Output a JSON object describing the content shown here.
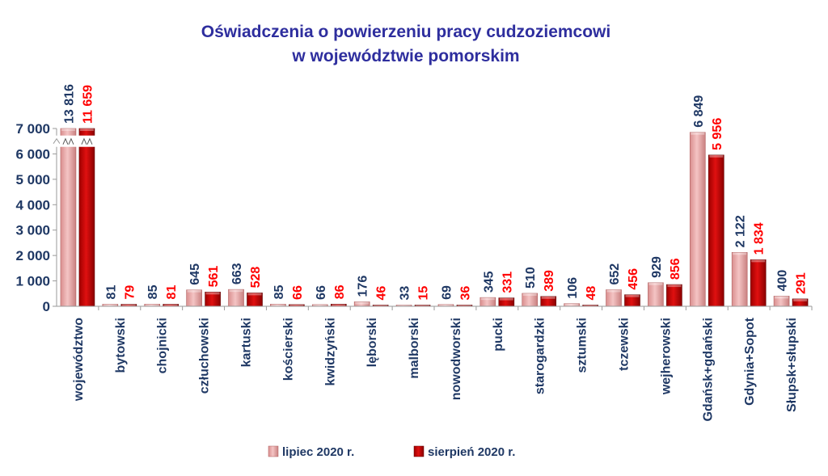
{
  "chart_data": {
    "type": "bar",
    "title": [
      "Oświadczenia o powierzeniu pracy cudzoziemcowi",
      "w województwie pomorskim"
    ],
    "categories": [
      "województwo",
      "bytowski",
      "chojnicki",
      "człuchowski",
      "kartuski",
      "kościerski",
      "kwidzyński",
      "lęborski",
      "malborski",
      "nowodworski",
      "pucki",
      "starogardzki",
      "sztumski",
      "tczewski",
      "wejherowski",
      "Gdańsk+gdański",
      "Gdynia+Sopot",
      "Słupsk+słupski"
    ],
    "series": [
      {
        "name": "lipiec 2020 r.",
        "values": [
          13816,
          81,
          85,
          645,
          663,
          85,
          66,
          176,
          33,
          69,
          345,
          510,
          106,
          652,
          929,
          6849,
          2122,
          400
        ],
        "labels": [
          "13 816",
          "81",
          "85",
          "645",
          "663",
          "85",
          "66",
          "176",
          "33",
          "69",
          "345",
          "510",
          "106",
          "652",
          "929",
          "6 849",
          "2 122",
          "400"
        ],
        "color": "#e8a6a6",
        "label_color": "#1f3864"
      },
      {
        "name": "sierpień 2020 r.",
        "values": [
          11659,
          79,
          81,
          561,
          528,
          66,
          86,
          46,
          15,
          36,
          331,
          389,
          48,
          456,
          856,
          5956,
          1834,
          291
        ],
        "labels": [
          "11 659",
          "79",
          "81",
          "561",
          "528",
          "66",
          "86",
          "46",
          "15",
          "36",
          "331",
          "389",
          "48",
          "456",
          "856",
          "5 956",
          "1 834",
          "291"
        ],
        "color": "#c00000",
        "label_color": "#ff0000"
      }
    ],
    "yticks": [
      0,
      1000,
      2000,
      3000,
      4000,
      5000,
      6000,
      7000
    ],
    "ytick_labels": [
      "0",
      "1 000",
      "2 000",
      "3 000",
      "4 000",
      "5 000",
      "6 000",
      "7 000"
    ],
    "ylim": [
      0,
      7000
    ],
    "axis_break": true,
    "grid": false,
    "legend_position": "bottom",
    "colors": {
      "title": "#2e2e9e",
      "axis_text": "#1f3864"
    }
  }
}
